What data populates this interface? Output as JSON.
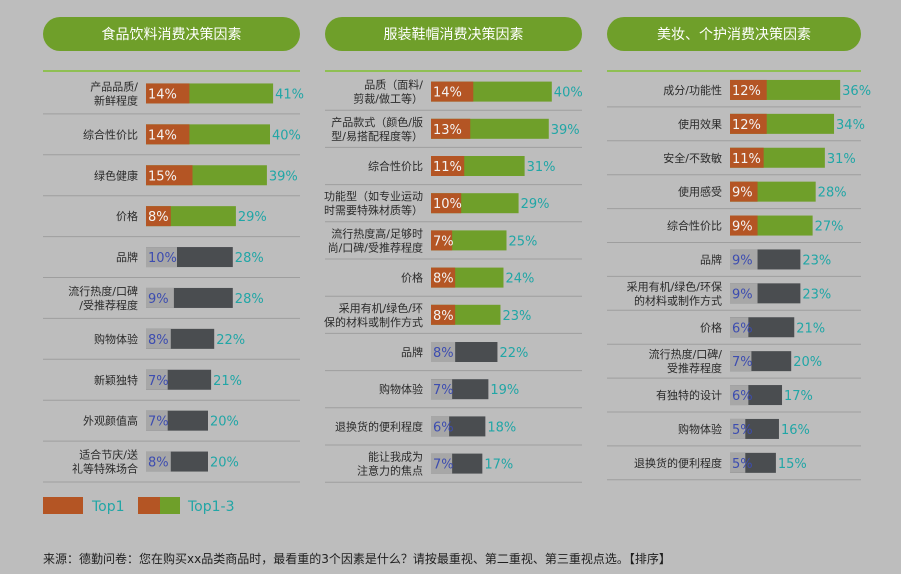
{
  "chart_data": [
    {
      "type": "bar",
      "title": "食品饮料消费决策因素",
      "categories": [
        "产品品质/新鲜程度",
        "综合性价比",
        "绿色健康",
        "价格",
        "品牌",
        "流行热度/口碑/受推荐程度",
        "购物体验",
        "新颖独特",
        "外观颜值高",
        "适合节庆/送礼等特殊场合"
      ],
      "labels": [
        [
          "产品品质/",
          "新鲜程度"
        ],
        [
          "综合性价比"
        ],
        [
          "绿色健康"
        ],
        [
          "价格"
        ],
        [
          "品牌"
        ],
        [
          "流行热度/口碑",
          "/受推荐程度"
        ],
        [
          "购物体验"
        ],
        [
          "新颖独特"
        ],
        [
          "外观颜值高"
        ],
        [
          "适合节庆/送",
          "礼等特殊场合"
        ]
      ],
      "series": [
        {
          "name": "Top1",
          "values": [
            14,
            14,
            15,
            8,
            10,
            9,
            8,
            7,
            7,
            8
          ]
        },
        {
          "name": "Top1-3",
          "values": [
            41,
            40,
            39,
            29,
            28,
            28,
            22,
            21,
            20,
            20
          ]
        }
      ],
      "highlight_count": 4
    },
    {
      "type": "bar",
      "title": "服装鞋帽消费决策因素",
      "categories": [
        "品质（面料/剪裁/做工等）",
        "产品款式（颜色/版型/易搭配程度等）",
        "综合性价比",
        "功能型（如专业运动时需要特殊材质等）",
        "流行热度高/足够时尚/口碑/受推荐程度",
        "价格",
        "采用有机/绿色/环保的材料或制作方式",
        "品牌",
        "购物体验",
        "退换货的便利程度",
        "能让我成为注意力的焦点"
      ],
      "labels": [
        [
          "品质（面料/",
          "剪裁/做工等）"
        ],
        [
          "产品款式（颜色/版",
          "型/易搭配程度等）"
        ],
        [
          "综合性价比"
        ],
        [
          "功能型（如专业运动",
          "时需要特殊材质等）"
        ],
        [
          "流行热度高/足够时",
          "尚/口碑/受推荐程度"
        ],
        [
          "价格"
        ],
        [
          "采用有机/绿色/环",
          "保的材料或制作方式"
        ],
        [
          "品牌"
        ],
        [
          "购物体验"
        ],
        [
          "退换货的便利程度"
        ],
        [
          "能让我成为",
          "注意力的焦点"
        ]
      ],
      "series": [
        {
          "name": "Top1",
          "values": [
            14,
            13,
            11,
            10,
            7,
            8,
            8,
            8,
            7,
            6,
            7
          ]
        },
        {
          "name": "Top1-3",
          "values": [
            40,
            39,
            31,
            29,
            25,
            24,
            23,
            22,
            19,
            18,
            17
          ]
        }
      ],
      "highlight_count": 7
    },
    {
      "type": "bar",
      "title": "美妆、个护消费决策因素",
      "categories": [
        "成分/功能性",
        "使用效果",
        "安全/不致敏",
        "使用感受",
        "综合性价比",
        "品牌",
        "采用有机/绿色/环保的材料或制作方式",
        "价格",
        "流行热度/口碑/受推荐程度",
        "有独特的设计",
        "购物体验",
        "退换货的便利程度"
      ],
      "labels": [
        [
          "成分/功能性"
        ],
        [
          "使用效果"
        ],
        [
          "安全/不致敏"
        ],
        [
          "使用感受"
        ],
        [
          "综合性价比"
        ],
        [
          "品牌"
        ],
        [
          "采用有机/绿色/环保",
          "的材料或制作方式"
        ],
        [
          "价格"
        ],
        [
          "流行热度/口碑/",
          "受推荐程度"
        ],
        [
          "有独特的设计"
        ],
        [
          "购物体验"
        ],
        [
          "退换货的便利程度"
        ]
      ],
      "series": [
        {
          "name": "Top1",
          "values": [
            12,
            12,
            11,
            9,
            9,
            9,
            9,
            6,
            7,
            6,
            5,
            5
          ]
        },
        {
          "name": "Top1-3",
          "values": [
            36,
            34,
            31,
            28,
            27,
            23,
            23,
            21,
            20,
            17,
            16,
            15
          ]
        }
      ],
      "highlight_count": 5
    }
  ],
  "legend": {
    "top1_label": "Top1",
    "top3_label": "Top1-3"
  },
  "source": "来源：德勤问卷：您在购买xx品类商品时，最看重的3个因素是什么？请按最重视、第二重视、第三重视点选。【排序】",
  "colors": {
    "pill": "#6f9f2a",
    "top1": "#b45524",
    "top3_highlight": "#6f9f2a",
    "top3_other": "#4a4d50",
    "top1_other": "#a7a7a7",
    "value_text": "#21a6a6",
    "background": "#bdbdbd"
  }
}
